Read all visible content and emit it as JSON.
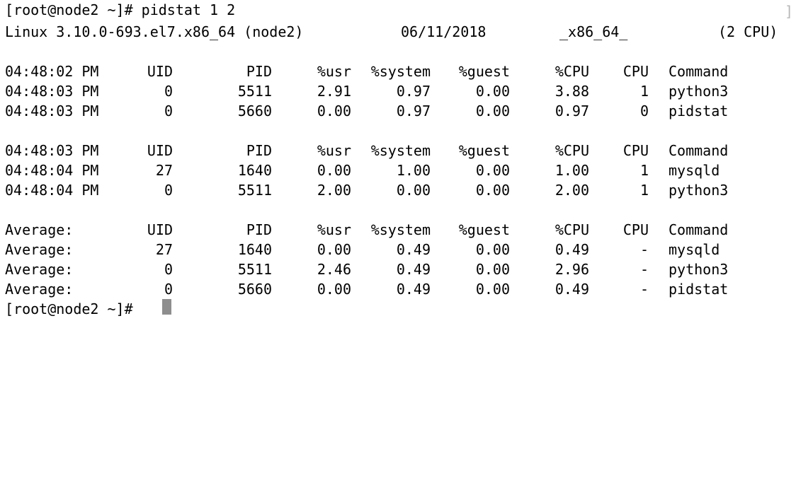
{
  "terminal": {
    "top_prompt": "[root@node2 ~]# pidstat 1 2",
    "header_line": {
      "os": "Linux 3.10.0-693.el7.x86_64 (node2)",
      "date": "06/11/2018",
      "arch": "_x86_64_",
      "cpus": "(2 CPU)"
    },
    "blocks": [
      {
        "header": [
          "04:48:02 PM",
          "UID",
          "PID",
          "%usr",
          "%system",
          "%guest",
          "%CPU",
          "CPU",
          "Command"
        ],
        "rows": [
          [
            "04:48:03 PM",
            "0",
            "5511",
            "2.91",
            "0.97",
            "0.00",
            "3.88",
            "1",
            "python3"
          ],
          [
            "04:48:03 PM",
            "0",
            "5660",
            "0.00",
            "0.97",
            "0.00",
            "0.97",
            "0",
            "pidstat"
          ]
        ]
      },
      {
        "header": [
          "04:48:03 PM",
          "UID",
          "PID",
          "%usr",
          "%system",
          "%guest",
          "%CPU",
          "CPU",
          "Command"
        ],
        "rows": [
          [
            "04:48:04 PM",
            "27",
            "1640",
            "0.00",
            "1.00",
            "0.00",
            "1.00",
            "1",
            "mysqld"
          ],
          [
            "04:48:04 PM",
            "0",
            "5511",
            "2.00",
            "0.00",
            "0.00",
            "2.00",
            "1",
            "python3"
          ]
        ]
      },
      {
        "header": [
          "Average:",
          "UID",
          "PID",
          "%usr",
          "%system",
          "%guest",
          "%CPU",
          "CPU",
          "Command"
        ],
        "rows": [
          [
            "Average:",
            "27",
            "1640",
            "0.00",
            "0.49",
            "0.00",
            "0.49",
            "-",
            "mysqld"
          ],
          [
            "Average:",
            "0",
            "5511",
            "2.46",
            "0.49",
            "0.00",
            "2.96",
            "-",
            "python3"
          ],
          [
            "Average:",
            "0",
            "5660",
            "0.00",
            "0.49",
            "0.00",
            "0.49",
            "-",
            "pidstat"
          ]
        ]
      }
    ],
    "bottom_prompt": "[root@node2 ~]#",
    "right_bracket": "]"
  }
}
